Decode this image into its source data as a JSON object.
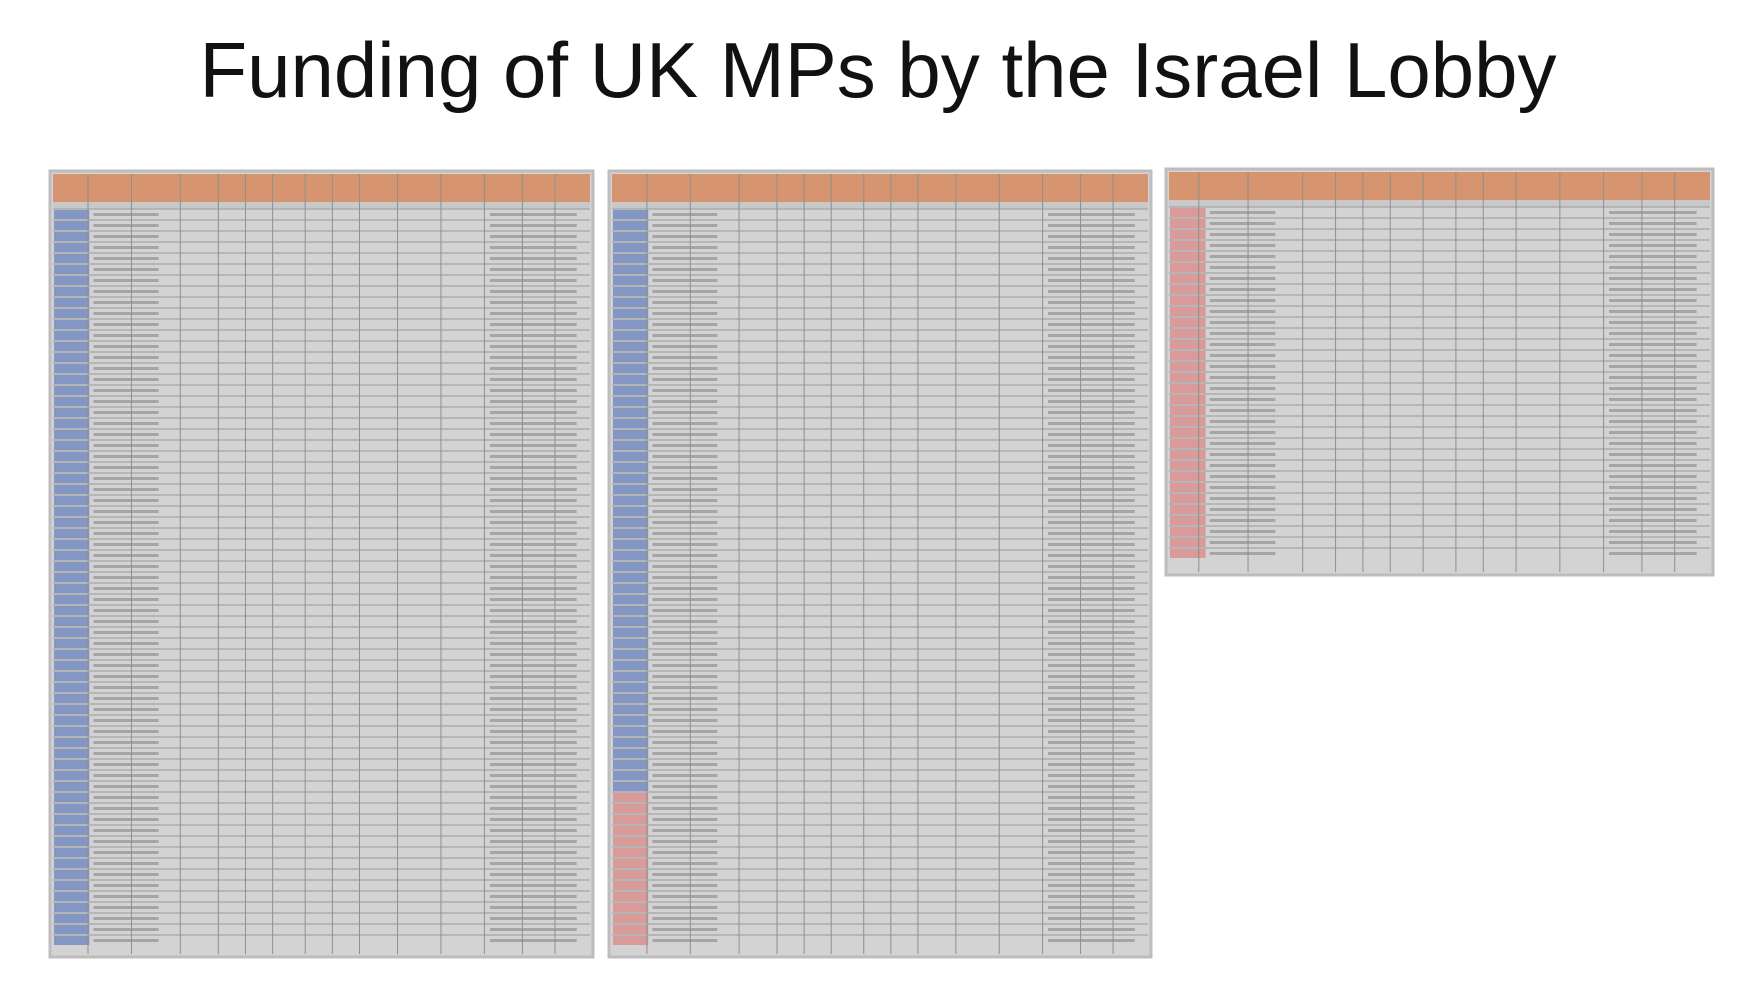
{
  "title": "Funding of UK MPs by the Israel Lobby"
}
